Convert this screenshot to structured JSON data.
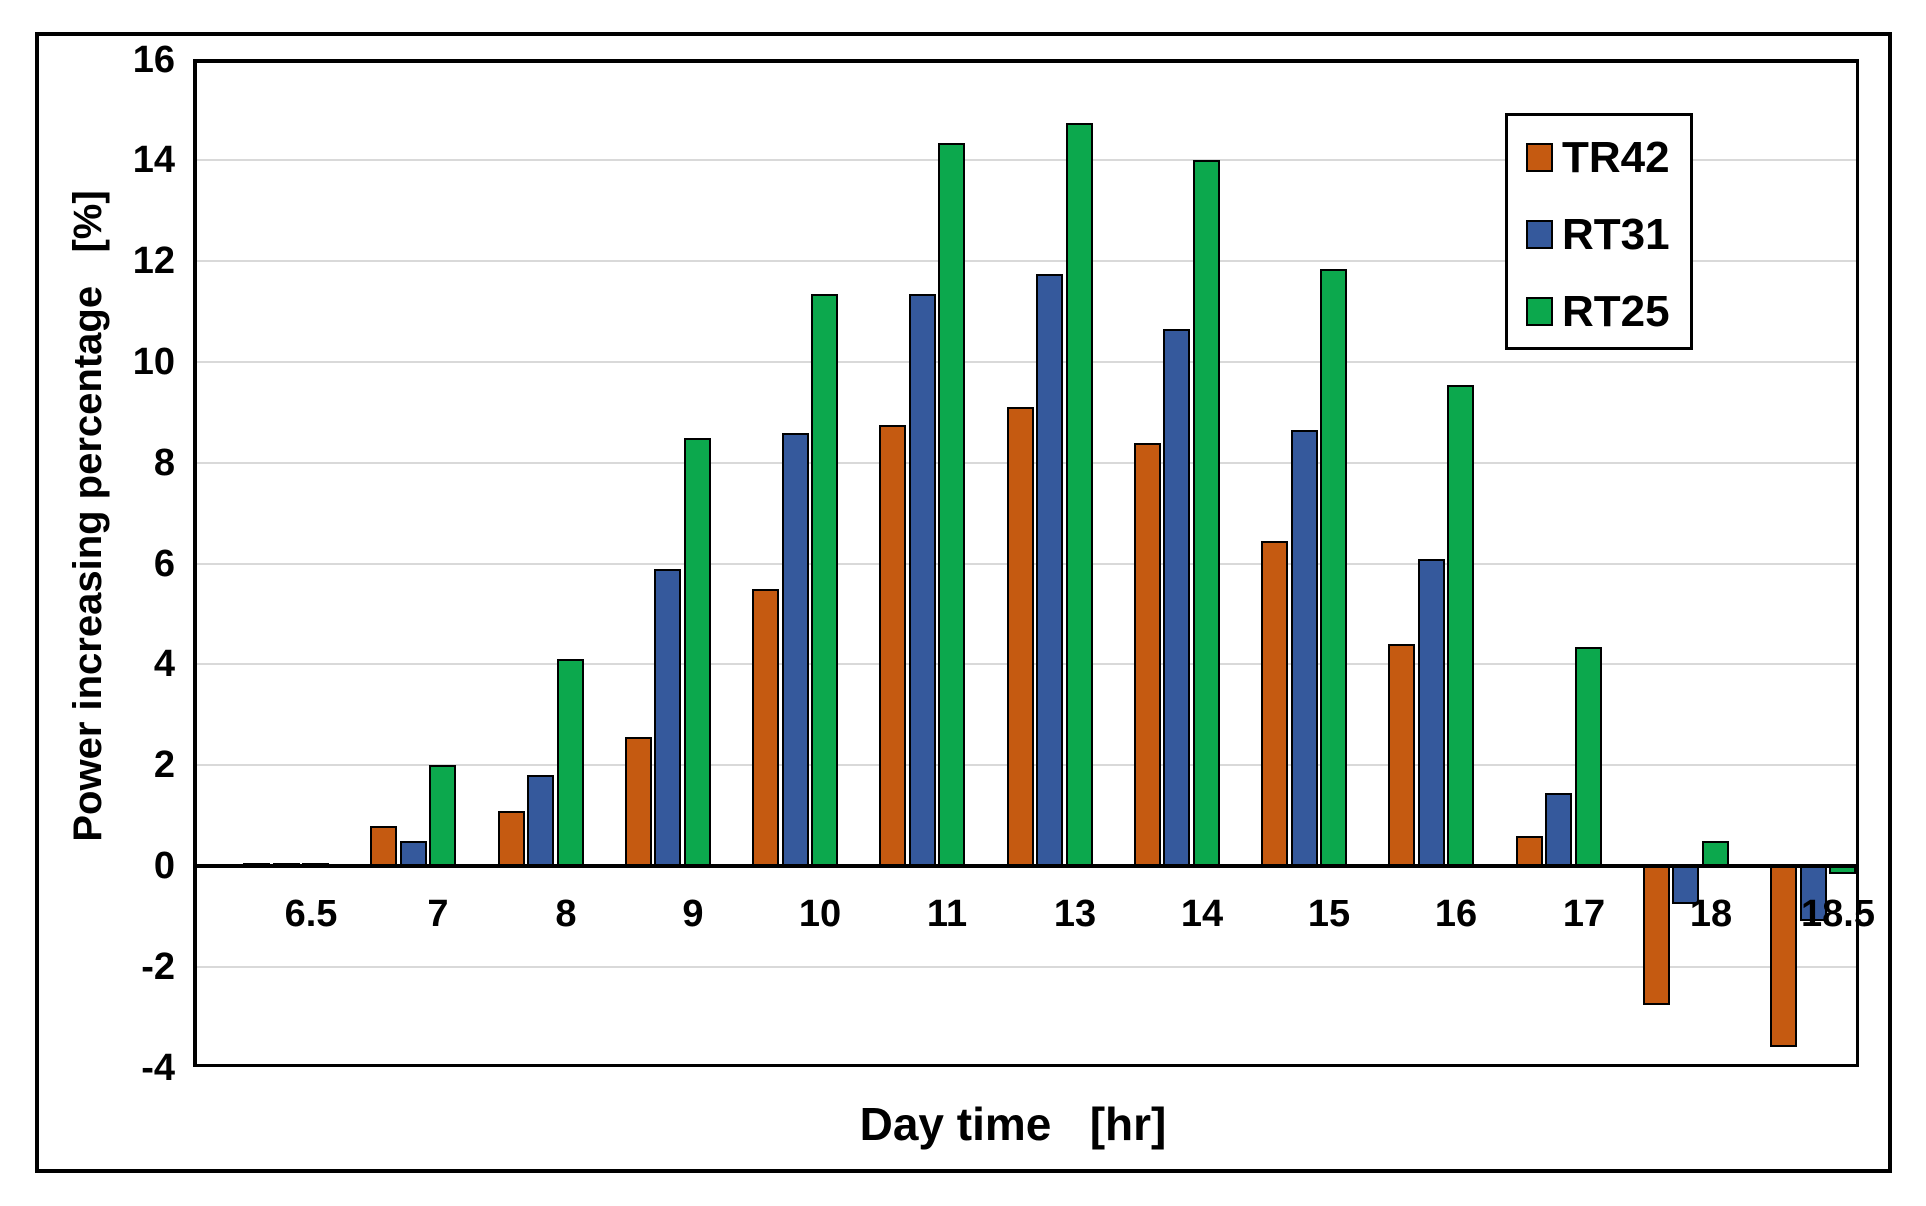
{
  "chart_data": {
    "type": "bar",
    "title": "",
    "xlabel": "Day time   [hr]",
    "ylabel": "Power increasing percentage   [%]",
    "categories": [
      "6.5",
      "7",
      "8",
      "9",
      "10",
      "11",
      "13",
      "14",
      "15",
      "16",
      "17",
      "18",
      "18.5"
    ],
    "series": [
      {
        "name": "TR42",
        "color": "#C55A11",
        "values": [
          0.05,
          0.8,
          1.1,
          2.55,
          5.5,
          8.75,
          9.1,
          8.4,
          6.45,
          4.4,
          0.6,
          -2.75,
          -3.6
        ]
      },
      {
        "name": "RT31",
        "color": "#35599C",
        "values": [
          0.05,
          0.5,
          1.8,
          5.9,
          8.6,
          11.35,
          11.75,
          10.65,
          8.65,
          6.1,
          1.45,
          -0.75,
          -1.1
        ]
      },
      {
        "name": "RT25",
        "color": "#0CA84D",
        "values": [
          0.05,
          2.0,
          4.1,
          8.5,
          11.35,
          14.35,
          14.75,
          14.0,
          11.85,
          9.55,
          4.35,
          0.5,
          -0.15
        ]
      }
    ],
    "ylim": [
      -4,
      16
    ],
    "ytick_step": 2,
    "yticks": [
      "16",
      "14",
      "12",
      "10",
      "8",
      "6",
      "4",
      "2",
      "0",
      "-2",
      "-4"
    ],
    "grid": "horizontal",
    "gridline_color": "#D9D9D9",
    "axis_color": "#000000",
    "background": "#FFFFFF",
    "legend_position": "top-right",
    "legend_labels": [
      "TR42",
      "RT31",
      "RT25"
    ]
  }
}
